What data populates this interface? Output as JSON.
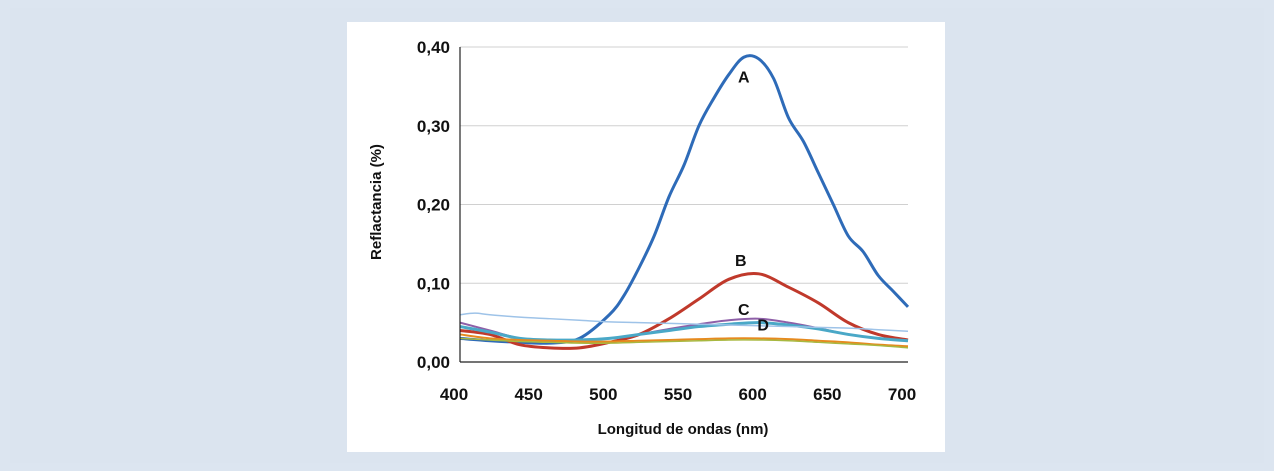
{
  "colors": {
    "background": "#dce5f0",
    "figure_bg": "#ffffff",
    "grid": "#d0d0d0",
    "axis": "#222222"
  },
  "chart_data": {
    "type": "line",
    "xlabel": "Longitud de ondas (nm)",
    "ylabel": "Reflactancia (%)",
    "xlim": [
      400,
      700
    ],
    "ylim": [
      0,
      0.4
    ],
    "x_ticks": [
      "400",
      "450",
      "500",
      "550",
      "600",
      "650",
      "700"
    ],
    "y_ticks": [
      "0,00",
      "0,10",
      "0,20",
      "0,30",
      "0,40"
    ],
    "grid": "horizontal",
    "series": [
      {
        "name": "A",
        "color": "#2e6bb8",
        "width": 3,
        "x": [
          400,
          420,
          440,
          460,
          480,
          500,
          510,
          520,
          530,
          540,
          550,
          560,
          570,
          580,
          590,
          600,
          610,
          620,
          630,
          640,
          650,
          660,
          670,
          680,
          690,
          700
        ],
        "y": [
          0.03,
          0.027,
          0.025,
          0.024,
          0.03,
          0.06,
          0.085,
          0.12,
          0.16,
          0.21,
          0.25,
          0.3,
          0.335,
          0.365,
          0.387,
          0.385,
          0.36,
          0.31,
          0.28,
          0.24,
          0.2,
          0.16,
          0.14,
          0.11,
          0.09,
          0.07
        ]
      },
      {
        "name": "B",
        "color": "#c0392b",
        "width": 3,
        "x": [
          400,
          420,
          440,
          460,
          480,
          500,
          520,
          540,
          560,
          580,
          600,
          620,
          640,
          660,
          680,
          700
        ],
        "y": [
          0.04,
          0.035,
          0.022,
          0.018,
          0.018,
          0.025,
          0.035,
          0.055,
          0.08,
          0.105,
          0.112,
          0.095,
          0.075,
          0.05,
          0.035,
          0.028
        ]
      },
      {
        "name": "C",
        "color": "#8e5fa8",
        "width": 2,
        "x": [
          400,
          420,
          440,
          460,
          480,
          500,
          520,
          540,
          560,
          580,
          600,
          620,
          640,
          660,
          680,
          700
        ],
        "y": [
          0.05,
          0.04,
          0.03,
          0.027,
          0.028,
          0.03,
          0.035,
          0.042,
          0.048,
          0.053,
          0.055,
          0.05,
          0.043,
          0.035,
          0.03,
          0.027
        ]
      },
      {
        "name": "D",
        "color": "#4aa8c7",
        "width": 3,
        "x": [
          400,
          420,
          440,
          460,
          480,
          500,
          520,
          540,
          560,
          580,
          600,
          620,
          640,
          660,
          680,
          700
        ],
        "y": [
          0.045,
          0.038,
          0.03,
          0.028,
          0.028,
          0.03,
          0.035,
          0.04,
          0.045,
          0.048,
          0.05,
          0.047,
          0.042,
          0.035,
          0.03,
          0.027
        ]
      },
      {
        "color": "#9ec3e8",
        "width": 1.5,
        "x": [
          400,
          410,
          420,
          440,
          460,
          480,
          500,
          520,
          540,
          560,
          580,
          600,
          620,
          640,
          660,
          680,
          700
        ],
        "y": [
          0.06,
          0.062,
          0.06,
          0.057,
          0.055,
          0.053,
          0.051,
          0.05,
          0.049,
          0.048,
          0.047,
          0.046,
          0.045,
          0.044,
          0.043,
          0.041,
          0.039
        ]
      },
      {
        "color": "#e68a1f",
        "width": 2,
        "x": [
          400,
          420,
          440,
          460,
          480,
          500,
          520,
          540,
          560,
          580,
          600,
          620,
          640,
          660,
          680,
          700
        ],
        "y": [
          0.035,
          0.03,
          0.028,
          0.027,
          0.026,
          0.026,
          0.027,
          0.028,
          0.029,
          0.03,
          0.03,
          0.029,
          0.027,
          0.025,
          0.022,
          0.02
        ]
      },
      {
        "color": "#a8b840",
        "width": 1.5,
        "x": [
          400,
          420,
          440,
          460,
          480,
          500,
          520,
          540,
          560,
          580,
          600,
          620,
          640,
          660,
          680,
          700
        ],
        "y": [
          0.03,
          0.028,
          0.026,
          0.025,
          0.024,
          0.024,
          0.025,
          0.026,
          0.027,
          0.028,
          0.028,
          0.027,
          0.025,
          0.023,
          0.021,
          0.018
        ]
      }
    ],
    "curve_labels": [
      {
        "text": "A",
        "x": 590,
        "y": 0.355
      },
      {
        "text": "B",
        "x": 588,
        "y": 0.122
      },
      {
        "text": "C",
        "x": 590,
        "y": 0.06
      },
      {
        "text": "D",
        "x": 603,
        "y": 0.04
      }
    ]
  }
}
